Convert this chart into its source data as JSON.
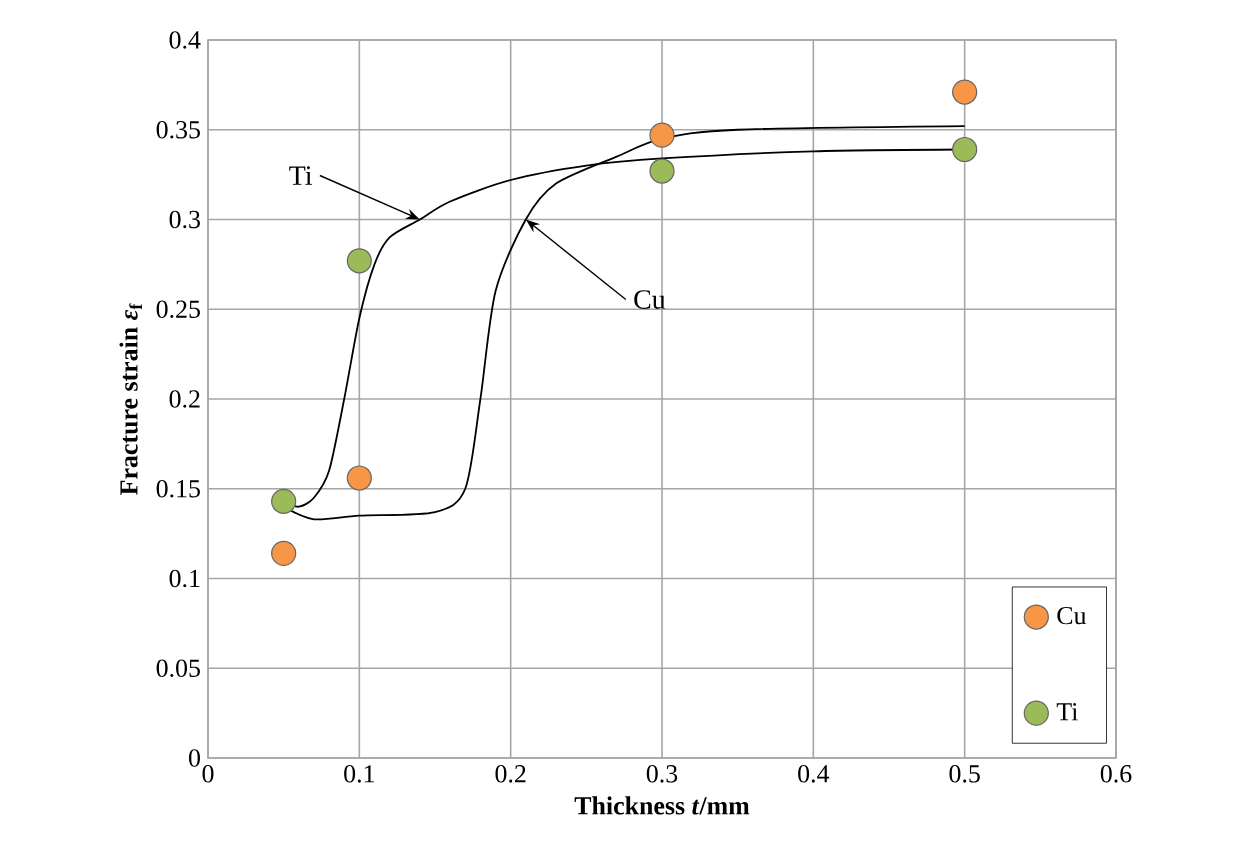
{
  "chart_data": {
    "type": "scatter",
    "xlabel": "Thickness *t*/mm",
    "ylabel": "Fracture strain *ε*$_{f}$",
    "xlim": [
      0,
      0.6
    ],
    "ylim": [
      0,
      0.4
    ],
    "xticks": [
      0,
      0.1,
      0.2,
      0.3,
      0.4,
      0.5,
      0.6
    ],
    "yticks": [
      0,
      0.05,
      0.1,
      0.15,
      0.2,
      0.25,
      0.3,
      0.35,
      0.4
    ],
    "grid": true,
    "legend": "bottom right",
    "series": [
      {
        "name": "Cu",
        "marker": "circle",
        "color": "#f79646",
        "x": [
          0.05,
          0.1,
          0.3,
          0.5
        ],
        "values": [
          0.114,
          0.156,
          0.347,
          0.371
        ]
      },
      {
        "name": "Ti",
        "marker": "circle",
        "color": "#9bbb59",
        "x": [
          0.05,
          0.1,
          0.3,
          0.5
        ],
        "values": [
          0.143,
          0.277,
          0.327,
          0.339
        ]
      },
      {
        "type": "line",
        "marker": "none",
        "line_style": "solid",
        "color": "#000000",
        "x": [
          0.05,
          0.06,
          0.07,
          0.08,
          0.09,
          0.1,
          0.11,
          0.12,
          0.14,
          0.16,
          0.2,
          0.25,
          0.3,
          0.4,
          0.5
        ],
        "values": [
          0.143,
          0.14,
          0.145,
          0.16,
          0.2,
          0.245,
          0.275,
          0.29,
          0.3,
          0.31,
          0.322,
          0.33,
          0.334,
          0.338,
          0.339
        ]
      },
      {
        "type": "line",
        "marker": "none",
        "line_style": "solid",
        "color": "#000000",
        "x": [
          0.05,
          0.07,
          0.1,
          0.15,
          0.17,
          0.18,
          0.19,
          0.21,
          0.23,
          0.27,
          0.3,
          0.35,
          0.5
        ],
        "values": [
          0.14,
          0.133,
          0.135,
          0.137,
          0.15,
          0.2,
          0.26,
          0.3,
          0.32,
          0.335,
          0.345,
          0.35,
          0.352
        ]
      }
    ],
    "annotations": [
      {
        "text": "Ti",
        "x": 0.14,
        "y": 0.3
      },
      {
        "text": "Cu",
        "x": 0.21,
        "y": 0.3
      }
    ]
  }
}
